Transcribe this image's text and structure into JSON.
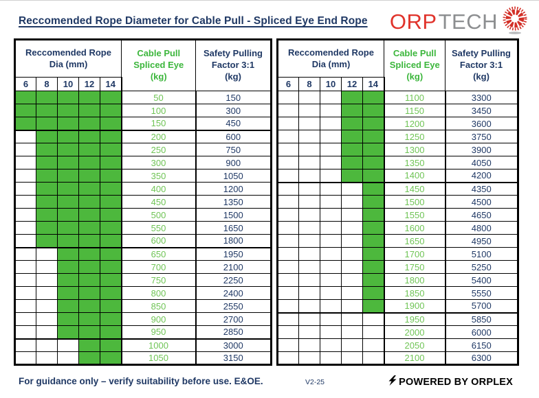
{
  "title": "Reccomended Rope Diameter for Cable Pull - Spliced Eye End Rope",
  "logo": {
    "text_primary": "ORP",
    "text_secondary": "TECH",
    "icon": "rope-starburst-icon",
    "color_primary": "#E0332B",
    "color_secondary": "#8C8E90"
  },
  "colors": {
    "navy_text": "#1F3864",
    "green_cell_fill": "#4DB83D",
    "green_value_text": "#6FC455",
    "green_header_text": "#3CB63C",
    "border": "#000000"
  },
  "header": {
    "dia_line1": "Reccomended Rope",
    "dia_line2": "Dia (mm)",
    "dia_columns": [
      "6",
      "8",
      "10",
      "12",
      "14"
    ],
    "cable_line1": "Cable Pull",
    "cable_line2": "Spliced Eye",
    "cable_line3": "(kg)",
    "safety_line1": "Safety Pulling",
    "safety_line2": "Factor 3:1",
    "safety_line3": "(kg)"
  },
  "tables": [
    {
      "side": "left",
      "rows": [
        {
          "dia": [
            1,
            1,
            1,
            1,
            1
          ],
          "cable": "50",
          "safety": "150"
        },
        {
          "dia": [
            1,
            1,
            1,
            1,
            1
          ],
          "cable": "100",
          "safety": "300"
        },
        {
          "dia": [
            1,
            1,
            1,
            1,
            1
          ],
          "cable": "150",
          "safety": "450",
          "thick_after": true
        },
        {
          "dia": [
            0,
            1,
            1,
            1,
            1
          ],
          "cable": "200",
          "safety": "600"
        },
        {
          "dia": [
            0,
            1,
            1,
            1,
            1
          ],
          "cable": "250",
          "safety": "750"
        },
        {
          "dia": [
            0,
            1,
            1,
            1,
            1
          ],
          "cable": "300",
          "safety": "900"
        },
        {
          "dia": [
            0,
            1,
            1,
            1,
            1
          ],
          "cable": "350",
          "safety": "1050"
        },
        {
          "dia": [
            0,
            1,
            1,
            1,
            1
          ],
          "cable": "400",
          "safety": "1200"
        },
        {
          "dia": [
            0,
            1,
            1,
            1,
            1
          ],
          "cable": "450",
          "safety": "1350"
        },
        {
          "dia": [
            0,
            1,
            1,
            1,
            1
          ],
          "cable": "500",
          "safety": "1500"
        },
        {
          "dia": [
            0,
            1,
            1,
            1,
            1
          ],
          "cable": "550",
          "safety": "1650"
        },
        {
          "dia": [
            0,
            1,
            1,
            1,
            1
          ],
          "cable": "600",
          "safety": "1800",
          "thick_after": true
        },
        {
          "dia": [
            0,
            0,
            1,
            1,
            1
          ],
          "cable": "650",
          "safety": "1950"
        },
        {
          "dia": [
            0,
            0,
            1,
            1,
            1
          ],
          "cable": "700",
          "safety": "2100"
        },
        {
          "dia": [
            0,
            0,
            1,
            1,
            1
          ],
          "cable": "750",
          "safety": "2250"
        },
        {
          "dia": [
            0,
            0,
            1,
            1,
            1
          ],
          "cable": "800",
          "safety": "2400"
        },
        {
          "dia": [
            0,
            0,
            1,
            1,
            1
          ],
          "cable": "850",
          "safety": "2550"
        },
        {
          "dia": [
            0,
            0,
            1,
            1,
            1
          ],
          "cable": "900",
          "safety": "2700"
        },
        {
          "dia": [
            0,
            0,
            1,
            1,
            1
          ],
          "cable": "950",
          "safety": "2850",
          "thick_after": true
        },
        {
          "dia": [
            0,
            0,
            0,
            1,
            1
          ],
          "cable": "1000",
          "safety": "3000"
        },
        {
          "dia": [
            0,
            0,
            0,
            1,
            1
          ],
          "cable": "1050",
          "safety": "3150"
        }
      ]
    },
    {
      "side": "right",
      "rows": [
        {
          "dia": [
            0,
            0,
            0,
            1,
            1
          ],
          "cable": "1100",
          "safety": "3300"
        },
        {
          "dia": [
            0,
            0,
            0,
            1,
            1
          ],
          "cable": "1150",
          "safety": "3450"
        },
        {
          "dia": [
            0,
            0,
            0,
            1,
            1
          ],
          "cable": "1200",
          "safety": "3600"
        },
        {
          "dia": [
            0,
            0,
            0,
            1,
            1
          ],
          "cable": "1250",
          "safety": "3750"
        },
        {
          "dia": [
            0,
            0,
            0,
            1,
            1
          ],
          "cable": "1300",
          "safety": "3900"
        },
        {
          "dia": [
            0,
            0,
            0,
            1,
            1
          ],
          "cable": "1350",
          "safety": "4050"
        },
        {
          "dia": [
            0,
            0,
            0,
            1,
            1
          ],
          "cable": "1400",
          "safety": "4200",
          "thick_after": true
        },
        {
          "dia": [
            0,
            0,
            0,
            0,
            1
          ],
          "cable": "1450",
          "safety": "4350"
        },
        {
          "dia": [
            0,
            0,
            0,
            0,
            1
          ],
          "cable": "1500",
          "safety": "4500"
        },
        {
          "dia": [
            0,
            0,
            0,
            0,
            1
          ],
          "cable": "1550",
          "safety": "4650"
        },
        {
          "dia": [
            0,
            0,
            0,
            0,
            1
          ],
          "cable": "1600",
          "safety": "4800"
        },
        {
          "dia": [
            0,
            0,
            0,
            0,
            1
          ],
          "cable": "1650",
          "safety": "4950"
        },
        {
          "dia": [
            0,
            0,
            0,
            0,
            1
          ],
          "cable": "1700",
          "safety": "5100"
        },
        {
          "dia": [
            0,
            0,
            0,
            0,
            1
          ],
          "cable": "1750",
          "safety": "5250"
        },
        {
          "dia": [
            0,
            0,
            0,
            0,
            1
          ],
          "cable": "1800",
          "safety": "5400"
        },
        {
          "dia": [
            0,
            0,
            0,
            0,
            1
          ],
          "cable": "1850",
          "safety": "5550"
        },
        {
          "dia": [
            0,
            0,
            0,
            0,
            1
          ],
          "cable": "1900",
          "safety": "5700",
          "thick_after": true
        },
        {
          "dia": [
            0,
            0,
            0,
            0,
            0
          ],
          "cable": "1950",
          "safety": "5850"
        },
        {
          "dia": [
            0,
            0,
            0,
            0,
            0
          ],
          "cable": "2000",
          "safety": "6000"
        },
        {
          "dia": [
            0,
            0,
            0,
            0,
            0
          ],
          "cable": "2050",
          "safety": "6150"
        },
        {
          "dia": [
            0,
            0,
            0,
            0,
            0
          ],
          "cable": "2100",
          "safety": "6300"
        }
      ]
    }
  ],
  "footer": {
    "note": "For guidance only – verify suitability before use. E&OE.",
    "version": "V2-25",
    "powered": "POWERED BY ORPLEX"
  }
}
